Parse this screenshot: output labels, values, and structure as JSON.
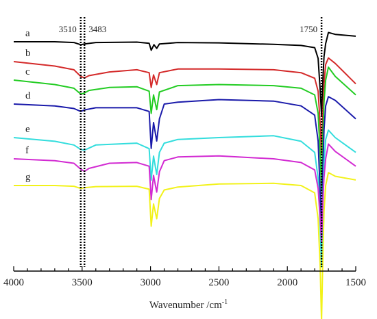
{
  "chart_data": {
    "type": "line",
    "title": "",
    "xlabel": "Wavenumber /cm",
    "xlabel_superscript": "-1",
    "xlim": [
      4000,
      1500
    ],
    "x_reversed": true,
    "xticks": [
      "4000",
      "3500",
      "3000",
      "2500",
      "2000",
      "1500"
    ],
    "y_axis_shown": false,
    "grid": false,
    "annotations": [
      {
        "label": "3510",
        "x": 3510
      },
      {
        "label": "3483",
        "x": 3483
      },
      {
        "label": "1750",
        "x": 1750
      }
    ],
    "series": [
      {
        "name": "a",
        "color": "#000000",
        "baseline": 0.0,
        "points": [
          [
            4000,
            0
          ],
          [
            3700,
            0
          ],
          [
            3560,
            0.002
          ],
          [
            3510,
            0.008
          ],
          [
            3483,
            0.006
          ],
          [
            3400,
            0.002
          ],
          [
            3100,
            0.001
          ],
          [
            3010,
            0.004
          ],
          [
            2995,
            0.023
          ],
          [
            2975,
            0.008
          ],
          [
            2955,
            0.018
          ],
          [
            2935,
            0.006
          ],
          [
            2800,
            0.002
          ],
          [
            2500,
            0.003
          ],
          [
            2100,
            0.007
          ],
          [
            1900,
            0.01
          ],
          [
            1800,
            0.016
          ],
          [
            1775,
            0.045
          ],
          [
            1760,
            0.13
          ],
          [
            1750,
            0.2
          ],
          [
            1742,
            0.12
          ],
          [
            1732,
            0.04
          ],
          [
            1720,
            0.005
          ],
          [
            1700,
            -0.025
          ],
          [
            1650,
            -0.02
          ],
          [
            1500,
            -0.015
          ]
        ]
      },
      {
        "name": "b",
        "color": "#d42a2a",
        "baseline": 0.0,
        "points": [
          [
            4000,
            0
          ],
          [
            3700,
            0.012
          ],
          [
            3560,
            0.022
          ],
          [
            3510,
            0.04
          ],
          [
            3483,
            0.044
          ],
          [
            3450,
            0.038
          ],
          [
            3300,
            0.028
          ],
          [
            3100,
            0.022
          ],
          [
            3010,
            0.03
          ],
          [
            2995,
            0.07
          ],
          [
            2978,
            0.036
          ],
          [
            2955,
            0.062
          ],
          [
            2935,
            0.03
          ],
          [
            2800,
            0.02
          ],
          [
            2500,
            0.02
          ],
          [
            2100,
            0.022
          ],
          [
            1900,
            0.03
          ],
          [
            1800,
            0.045
          ],
          [
            1775,
            0.08
          ],
          [
            1760,
            0.17
          ],
          [
            1750,
            0.25
          ],
          [
            1742,
            0.15
          ],
          [
            1732,
            0.06
          ],
          [
            1720,
            0.008
          ],
          [
            1700,
            -0.01
          ],
          [
            1650,
            0.005
          ],
          [
            1500,
            0.06
          ]
        ]
      },
      {
        "name": "c",
        "color": "#22cc22",
        "baseline": 0.0,
        "points": [
          [
            4000,
            0
          ],
          [
            3700,
            0.012
          ],
          [
            3560,
            0.022
          ],
          [
            3510,
            0.038
          ],
          [
            3483,
            0.035
          ],
          [
            3450,
            0.028
          ],
          [
            3300,
            0.02
          ],
          [
            3100,
            0.018
          ],
          [
            3010,
            0.03
          ],
          [
            2995,
            0.09
          ],
          [
            2978,
            0.04
          ],
          [
            2955,
            0.08
          ],
          [
            2935,
            0.032
          ],
          [
            2800,
            0.015
          ],
          [
            2500,
            0.012
          ],
          [
            2100,
            0.015
          ],
          [
            1900,
            0.022
          ],
          [
            1800,
            0.04
          ],
          [
            1775,
            0.09
          ],
          [
            1760,
            0.2
          ],
          [
            1750,
            0.3
          ],
          [
            1742,
            0.17
          ],
          [
            1732,
            0.06
          ],
          [
            1720,
            0.0
          ],
          [
            1700,
            -0.035
          ],
          [
            1650,
            -0.01
          ],
          [
            1500,
            0.04
          ]
        ]
      },
      {
        "name": "d",
        "color": "#1a1aaa",
        "baseline": 0.0,
        "points": [
          [
            4000,
            0
          ],
          [
            3700,
            0.005
          ],
          [
            3560,
            0.012
          ],
          [
            3510,
            0.02
          ],
          [
            3483,
            0.016
          ],
          [
            3400,
            0.01
          ],
          [
            3100,
            0.01
          ],
          [
            3010,
            0.02
          ],
          [
            2995,
            0.12
          ],
          [
            2978,
            0.05
          ],
          [
            2955,
            0.1
          ],
          [
            2935,
            0.04
          ],
          [
            2900,
            0.0
          ],
          [
            2800,
            -0.005
          ],
          [
            2500,
            -0.012
          ],
          [
            2100,
            -0.008
          ],
          [
            1900,
            0.005
          ],
          [
            1800,
            0.03
          ],
          [
            1775,
            0.1
          ],
          [
            1760,
            0.24
          ],
          [
            1750,
            0.37
          ],
          [
            1742,
            0.2
          ],
          [
            1732,
            0.07
          ],
          [
            1720,
            0.005
          ],
          [
            1700,
            -0.02
          ],
          [
            1650,
            -0.01
          ],
          [
            1500,
            0.04
          ]
        ]
      },
      {
        "name": "e",
        "color": "#33dddd",
        "baseline": 0.0,
        "points": [
          [
            4000,
            0
          ],
          [
            3700,
            0.01
          ],
          [
            3560,
            0.02
          ],
          [
            3510,
            0.032
          ],
          [
            3483,
            0.034
          ],
          [
            3400,
            0.02
          ],
          [
            3100,
            0.015
          ],
          [
            3010,
            0.03
          ],
          [
            2995,
            0.115
          ],
          [
            2978,
            0.05
          ],
          [
            2955,
            0.1
          ],
          [
            2935,
            0.04
          ],
          [
            2900,
            0.015
          ],
          [
            2800,
            0.005
          ],
          [
            2500,
            0.0
          ],
          [
            2100,
            -0.005
          ],
          [
            1900,
            0.01
          ],
          [
            1800,
            0.04
          ],
          [
            1775,
            0.11
          ],
          [
            1760,
            0.24
          ],
          [
            1750,
            0.35
          ],
          [
            1742,
            0.2
          ],
          [
            1732,
            0.07
          ],
          [
            1720,
            0.005
          ],
          [
            1700,
            -0.02
          ],
          [
            1650,
            0.0
          ],
          [
            1500,
            0.04
          ]
        ]
      },
      {
        "name": "f",
        "color": "#d22ad2",
        "baseline": 0.0,
        "points": [
          [
            4000,
            0
          ],
          [
            3700,
            0.005
          ],
          [
            3560,
            0.012
          ],
          [
            3510,
            0.028
          ],
          [
            3483,
            0.034
          ],
          [
            3450,
            0.026
          ],
          [
            3300,
            0.012
          ],
          [
            3100,
            0.01
          ],
          [
            3010,
            0.02
          ],
          [
            2995,
            0.11
          ],
          [
            2978,
            0.045
          ],
          [
            2955,
            0.09
          ],
          [
            2935,
            0.035
          ],
          [
            2900,
            0.005
          ],
          [
            2800,
            -0.005
          ],
          [
            2500,
            -0.008
          ],
          [
            2100,
            0.0
          ],
          [
            1900,
            0.01
          ],
          [
            1800,
            0.03
          ],
          [
            1775,
            0.08
          ],
          [
            1760,
            0.16
          ],
          [
            1750,
            0.225
          ],
          [
            1742,
            0.13
          ],
          [
            1732,
            0.05
          ],
          [
            1720,
            0.0
          ],
          [
            1700,
            -0.04
          ],
          [
            1650,
            -0.02
          ],
          [
            1500,
            0.02
          ]
        ]
      },
      {
        "name": "g",
        "color": "#f2f21a",
        "baseline": 0.0,
        "points": [
          [
            4000,
            0
          ],
          [
            3700,
            0.0
          ],
          [
            3560,
            0.002
          ],
          [
            3510,
            0.008
          ],
          [
            3483,
            0.006
          ],
          [
            3400,
            0.003
          ],
          [
            3100,
            0.002
          ],
          [
            3010,
            0.01
          ],
          [
            2995,
            0.11
          ],
          [
            2978,
            0.05
          ],
          [
            2955,
            0.09
          ],
          [
            2935,
            0.035
          ],
          [
            2900,
            0.012
          ],
          [
            2800,
            0.004
          ],
          [
            2500,
            -0.004
          ],
          [
            2100,
            -0.006
          ],
          [
            1900,
            0.0
          ],
          [
            1800,
            0.02
          ],
          [
            1775,
            0.09
          ],
          [
            1760,
            0.22
          ],
          [
            1750,
            0.37
          ],
          [
            1742,
            0.22
          ],
          [
            1732,
            0.07
          ],
          [
            1720,
            0.0
          ],
          [
            1700,
            -0.035
          ],
          [
            1650,
            -0.025
          ],
          [
            1500,
            -0.015
          ]
        ]
      }
    ]
  }
}
